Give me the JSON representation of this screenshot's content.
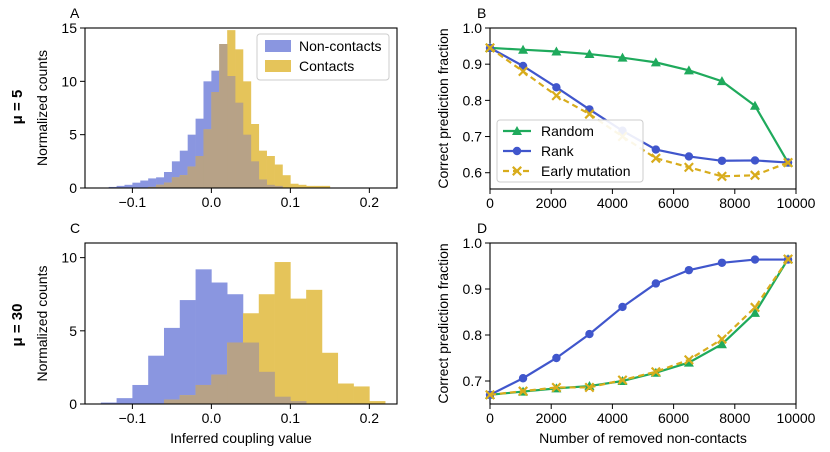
{
  "row_labels": [
    "μ = 5",
    "μ = 30"
  ],
  "colors": {
    "noncontacts": "#8a96e0",
    "contacts": "#e5c45a",
    "overlap": "#b7a287",
    "random": "#1faa5c",
    "rank": "#4056cc",
    "early": "#d8ac1c"
  },
  "chart_data": [
    {
      "panel": "A",
      "type": "histogram",
      "title": "",
      "xlabel": "",
      "ylabel": "Normalized counts",
      "xlim": [
        -0.16,
        0.235
      ],
      "ylim": [
        0,
        15
      ],
      "xticks": [
        -0.1,
        0.0,
        0.1,
        0.2
      ],
      "xtick_labels": [
        "−0.1",
        "0.0",
        "0.1",
        "0.2"
      ],
      "yticks": [
        0,
        5,
        10,
        15
      ],
      "ytick_labels": [
        "0",
        "5",
        "10",
        "15"
      ],
      "legend": {
        "position": "top-right",
        "entries": [
          "Non-contacts",
          "Contacts"
        ]
      },
      "series": [
        {
          "name": "Non-contacts",
          "color_key": "noncontacts",
          "bin_width": 0.01,
          "bin_starts": [
            -0.13,
            -0.12,
            -0.11,
            -0.1,
            -0.09,
            -0.08,
            -0.07,
            -0.06,
            -0.05,
            -0.04,
            -0.03,
            -0.02,
            -0.01,
            0.0,
            0.01,
            0.02,
            0.03,
            0.04,
            0.05,
            0.06,
            0.07,
            0.08
          ],
          "values": [
            0.1,
            0.2,
            0.3,
            0.5,
            0.7,
            0.9,
            1.0,
            1.5,
            2.5,
            3.5,
            5.0,
            6.5,
            10.0,
            11.0,
            13.5,
            10.5,
            8.0,
            5.0,
            2.5,
            0.8,
            0.3,
            0.2
          ]
        },
        {
          "name": "Contacts",
          "color_key": "contacts",
          "bin_width": 0.01,
          "bin_starts": [
            -0.08,
            -0.07,
            -0.06,
            -0.05,
            -0.04,
            -0.03,
            -0.02,
            -0.01,
            0.0,
            0.01,
            0.02,
            0.03,
            0.04,
            0.05,
            0.06,
            0.07,
            0.08,
            0.09,
            0.1,
            0.11,
            0.12,
            0.13,
            0.14
          ],
          "values": [
            0.1,
            0.3,
            0.5,
            1.0,
            1.2,
            2.0,
            3.0,
            5.5,
            9.0,
            13.5,
            14.8,
            13.0,
            10.0,
            6.0,
            3.5,
            3.0,
            2.2,
            1.2,
            0.4,
            0.3,
            0.2,
            0.2,
            0.2
          ]
        }
      ]
    },
    {
      "panel": "B",
      "type": "line",
      "title": "",
      "xlabel": "",
      "ylabel": "Correct prediction fraction",
      "xlim": [
        0,
        10000
      ],
      "ylim": [
        0.555,
        1.0
      ],
      "xticks": [
        0,
        2000,
        4000,
        6000,
        8000,
        10000
      ],
      "xtick_labels": [
        "0",
        "2000",
        "4000",
        "6000",
        "8000",
        "10000"
      ],
      "yticks": [
        0.6,
        0.7,
        0.8,
        0.9,
        1.0
      ],
      "ytick_labels": [
        "0.6",
        "0.7",
        "0.8",
        "0.9",
        "1.0"
      ],
      "legend": {
        "position": "lower-left",
        "entries": [
          "Random",
          "Rank",
          "Early mutation"
        ]
      },
      "x": [
        0,
        1080,
        2170,
        3250,
        4330,
        5420,
        6500,
        7580,
        8660,
        9740
      ],
      "series": [
        {
          "name": "Random",
          "color_key": "random",
          "marker": "triangle",
          "dash": false,
          "values": [
            0.945,
            0.94,
            0.935,
            0.928,
            0.918,
            0.905,
            0.883,
            0.853,
            0.785,
            0.628
          ]
        },
        {
          "name": "Rank",
          "color_key": "rank",
          "marker": "circle",
          "dash": false,
          "values": [
            0.945,
            0.895,
            0.836,
            0.775,
            0.716,
            0.664,
            0.645,
            0.633,
            0.634,
            0.628
          ]
        },
        {
          "name": "Early mutation",
          "color_key": "early",
          "marker": "x",
          "dash": true,
          "values": [
            0.945,
            0.88,
            0.813,
            0.762,
            0.7,
            0.64,
            0.615,
            0.59,
            0.593,
            0.628
          ]
        }
      ]
    },
    {
      "panel": "C",
      "type": "histogram",
      "title": "",
      "xlabel": "Inferred coupling value",
      "ylabel": "Normalized counts",
      "xlim": [
        -0.16,
        0.235
      ],
      "ylim": [
        0,
        11
      ],
      "xticks": [
        -0.1,
        0.0,
        0.1,
        0.2
      ],
      "xtick_labels": [
        "−0.1",
        "0.0",
        "0.1",
        "0.2"
      ],
      "yticks": [
        0,
        5,
        10
      ],
      "ytick_labels": [
        "0",
        "5",
        "10"
      ],
      "series": [
        {
          "name": "Non-contacts",
          "color_key": "noncontacts",
          "bin_width": 0.02,
          "bin_starts": [
            -0.14,
            -0.12,
            -0.1,
            -0.08,
            -0.06,
            -0.04,
            -0.02,
            0.0,
            0.02,
            0.04,
            0.06,
            0.08,
            0.1
          ],
          "values": [
            0.1,
            0.4,
            1.3,
            3.3,
            5.2,
            7.1,
            9.2,
            8.3,
            7.5,
            4.2,
            2.2,
            0.5,
            0.2
          ]
        },
        {
          "name": "Contacts",
          "color_key": "contacts",
          "bin_width": 0.02,
          "bin_starts": [
            -0.06,
            -0.04,
            -0.02,
            0.0,
            0.02,
            0.04,
            0.06,
            0.08,
            0.1,
            0.12,
            0.14,
            0.16,
            0.18,
            0.2
          ],
          "values": [
            0.3,
            0.6,
            1.3,
            2.0,
            4.2,
            6.2,
            7.5,
            9.7,
            7.2,
            7.8,
            3.5,
            1.4,
            1.2,
            0.2
          ]
        }
      ]
    },
    {
      "panel": "D",
      "type": "line",
      "title": "",
      "xlabel": "Number of removed non-contacts",
      "ylabel": "Correct prediction fraction",
      "xlim": [
        0,
        10000
      ],
      "ylim": [
        0.65,
        1.0
      ],
      "xticks": [
        0,
        2000,
        4000,
        6000,
        8000,
        10000
      ],
      "xtick_labels": [
        "0",
        "2000",
        "4000",
        "6000",
        "8000",
        "10000"
      ],
      "yticks": [
        0.7,
        0.8,
        0.9,
        1.0
      ],
      "ytick_labels": [
        "0.7",
        "0.8",
        "0.9",
        "1.0"
      ],
      "x": [
        0,
        1080,
        2170,
        3250,
        4330,
        5420,
        6500,
        7580,
        8660,
        9740
      ],
      "series": [
        {
          "name": "Random",
          "color_key": "random",
          "marker": "triangle",
          "dash": false,
          "values": [
            0.67,
            0.677,
            0.684,
            0.689,
            0.7,
            0.718,
            0.74,
            0.78,
            0.848,
            0.965
          ]
        },
        {
          "name": "Rank",
          "color_key": "rank",
          "marker": "circle",
          "dash": false,
          "values": [
            0.67,
            0.706,
            0.75,
            0.802,
            0.861,
            0.912,
            0.941,
            0.957,
            0.964,
            0.964
          ]
        },
        {
          "name": "Early mutation",
          "color_key": "early",
          "marker": "x",
          "dash": true,
          "values": [
            0.67,
            0.678,
            0.686,
            0.686,
            0.702,
            0.72,
            0.746,
            0.791,
            0.86,
            0.965
          ]
        }
      ]
    }
  ]
}
